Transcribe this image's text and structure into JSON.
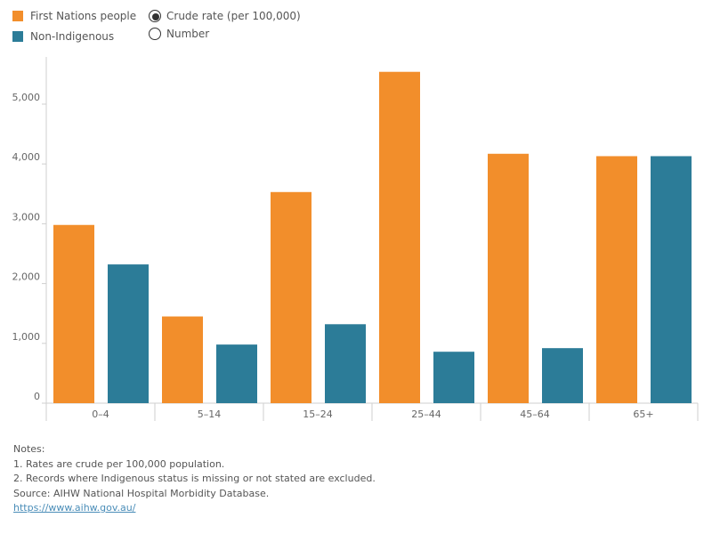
{
  "legend": {
    "items": [
      {
        "label": "First Nations people",
        "color": "#f28e2b"
      },
      {
        "label": "Non-Indigenous",
        "color": "#2c7c98"
      }
    ]
  },
  "measure_options": {
    "items": [
      {
        "label": "Crude rate (per 100,000)",
        "selected": true
      },
      {
        "label": "Number",
        "selected": false
      }
    ]
  },
  "chart_data": {
    "type": "bar",
    "title": "",
    "xlabel": "",
    "ylabel": "",
    "categories": [
      "0–4",
      "5–14",
      "15–24",
      "25–44",
      "45–64",
      "65+"
    ],
    "series": [
      {
        "name": "First Nations people",
        "color": "#f28e2b",
        "values": [
          2980,
          1450,
          3530,
          5540,
          4170,
          4130
        ]
      },
      {
        "name": "Non-Indigenous",
        "color": "#2c7c98",
        "values": [
          2320,
          980,
          1320,
          860,
          920,
          4130
        ]
      }
    ],
    "ylim": [
      0,
      6000
    ],
    "yticks": [
      0,
      1000,
      2000,
      3000,
      4000,
      5000
    ],
    "ytick_labels": [
      "0",
      "1,000",
      "2,000",
      "3,000",
      "4,000",
      "5,000"
    ],
    "grid": false,
    "legend_position": "top-left"
  },
  "notes": {
    "heading": "Notes:",
    "note1": "1. Rates are crude per 100,000 population.",
    "note2": "2. Records where Indigenous status is missing or not stated are excluded.",
    "source": "Source: AIHW National Hospital Morbidity Database.",
    "link": "https://www.aihw.gov.au/"
  }
}
